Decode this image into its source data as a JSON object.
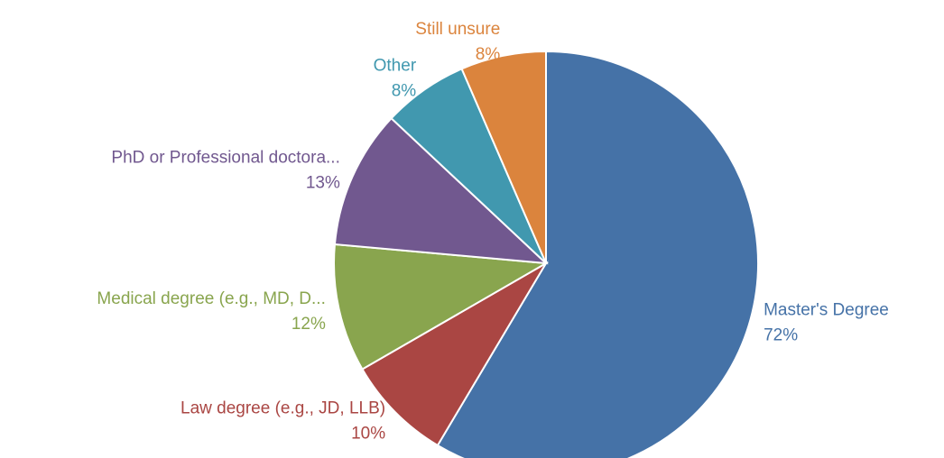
{
  "chart_data": {
    "type": "pie",
    "categories": [
      "Master's Degree",
      "Law degree (e.g., JD, LLB)",
      "Medical degree (e.g., MD, D...",
      "PhD or Professional doctora...",
      "Other",
      "Still unsure"
    ],
    "values": [
      72,
      10,
      12,
      13,
      8,
      8
    ],
    "value_labels": [
      "72%",
      "10%",
      "12%",
      "13%",
      "8%",
      "8%"
    ],
    "colors": [
      "#4572a7",
      "#aa4643",
      "#89a54e",
      "#71588f",
      "#4198af",
      "#db843d"
    ]
  }
}
